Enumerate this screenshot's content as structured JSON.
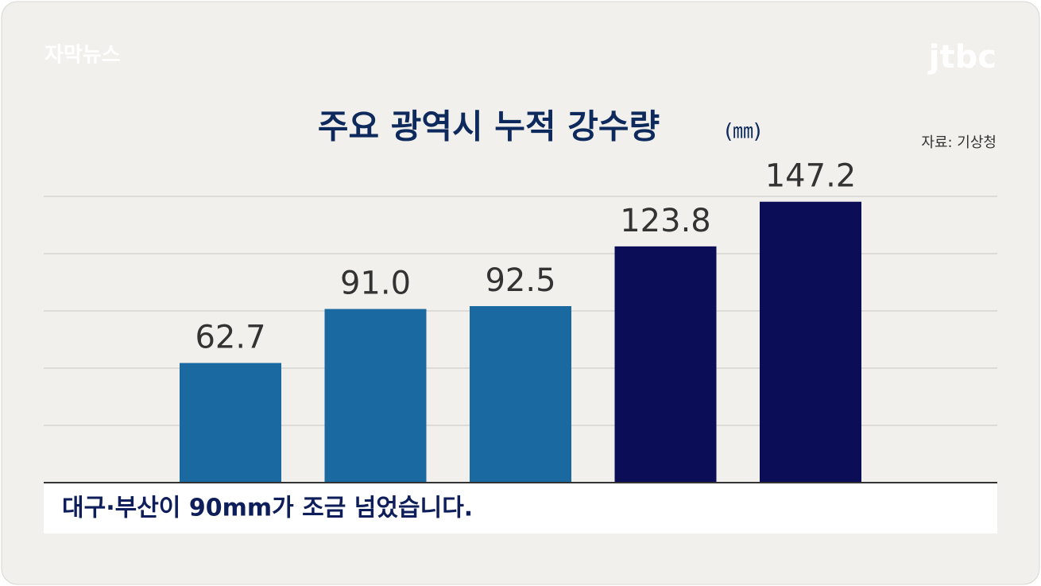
{
  "chart_data": {
    "type": "bar",
    "title": "주요 광역시 누적 강수량",
    "unit": "(㎜)",
    "source": "자료: 기상청",
    "program": "자막뉴스",
    "logo": "jtbc",
    "caption": "대구·부산이 90mm가 조금 넘었습니다.",
    "categories": [
      null,
      null,
      null,
      null,
      null
    ],
    "values": [
      62.7,
      91.0,
      92.5,
      123.8,
      147.2
    ],
    "value_labels": [
      "62.7",
      "91.0",
      "92.5",
      "123.8",
      "147.2"
    ],
    "colors": [
      "#1b69a1",
      "#1b69a1",
      "#1b69a1",
      "#0b0e57",
      "#0b0e57"
    ],
    "ylim": [
      0,
      150
    ],
    "yticks": [
      0,
      30,
      60,
      90,
      120,
      150
    ],
    "grid": true
  }
}
